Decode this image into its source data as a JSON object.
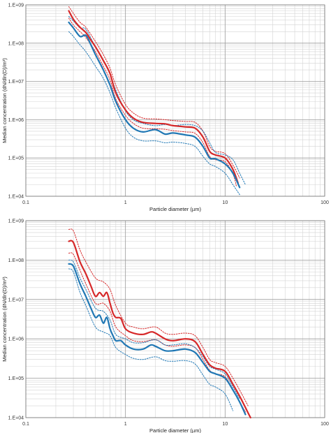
{
  "chart_data": [
    {
      "type": "line",
      "xscale": "log",
      "yscale": "log",
      "xlim": [
        0.1,
        100
      ],
      "ylim": [
        10000,
        1000000000
      ],
      "grid": true,
      "xlabel": "Particle diameter (µm)",
      "ylabel": "Median concentration (dN/dln(D)/m³)",
      "xticks": [
        "0.1",
        "1",
        "10",
        "100"
      ],
      "yticks": [
        "1.E+04",
        "1.E+05",
        "1.E+06",
        "1.E+07",
        "1.E+08",
        "1.E+09"
      ],
      "series": [
        {
          "color": "#d62728",
          "style": "solid",
          "x": [
            0.27,
            0.3,
            0.35,
            0.4,
            0.45,
            0.5,
            0.6,
            0.7,
            0.8,
            1.0,
            1.2,
            1.5,
            2.0,
            2.5,
            3.0,
            4.0,
            5.0,
            6.0,
            7.0,
            8.0,
            10.0,
            12.0,
            13.5
          ],
          "y": [
            700000000,
            420000000,
            260000000,
            190000000,
            120000000,
            80000000,
            35000000,
            16000000,
            5000000,
            1800000,
            1100000,
            850000,
            800000,
            780000,
            700000,
            650000,
            600000,
            350000,
            150000,
            120000,
            100000,
            50000,
            22000
          ]
        },
        {
          "color": "#d62728",
          "style": "dotted",
          "x": [
            0.27,
            0.3,
            0.35,
            0.4,
            0.5,
            0.6,
            0.7,
            0.8,
            1.0,
            1.2,
            1.5,
            2.0,
            2.5,
            3.0,
            4.0,
            5.0,
            6.0,
            7.0,
            8.0,
            10.0,
            12.0,
            14.0
          ],
          "y": [
            900000000,
            600000000,
            350000000,
            260000000,
            110000000,
            50000000,
            22000000,
            8000000,
            2500000,
            1500000,
            1100000,
            1050000,
            1000000,
            950000,
            900000,
            850000,
            500000,
            200000,
            150000,
            130000,
            65000,
            30000
          ]
        },
        {
          "color": "#d62728",
          "style": "dotted",
          "x": [
            0.27,
            0.3,
            0.35,
            0.4,
            0.5,
            0.6,
            0.7,
            0.8,
            1.0,
            1.2,
            1.5,
            2.0,
            2.5,
            3.0,
            4.0,
            5.0,
            6.0,
            7.0,
            8.0,
            10.0,
            12.0,
            13.0
          ],
          "y": [
            450000000,
            300000000,
            200000000,
            140000000,
            60000000,
            25000000,
            11000000,
            3500000,
            1300000,
            800000,
            600000,
            580000,
            560000,
            520000,
            480000,
            440000,
            250000,
            110000,
            90000,
            80000,
            38000,
            18000
          ]
        },
        {
          "color": "#1f77b4",
          "style": "solid",
          "x": [
            0.27,
            0.3,
            0.35,
            0.4,
            0.45,
            0.5,
            0.6,
            0.7,
            0.8,
            1.0,
            1.2,
            1.5,
            2.0,
            2.5,
            3.0,
            4.0,
            5.0,
            6.0,
            7.0,
            8.0,
            10.0,
            12.0,
            14.0
          ],
          "y": [
            350000000,
            250000000,
            150000000,
            160000000,
            90000000,
            50000000,
            20000000,
            8000000,
            3000000,
            1000000,
            600000,
            480000,
            550000,
            420000,
            450000,
            400000,
            350000,
            200000,
            100000,
            95000,
            70000,
            40000,
            17000
          ]
        },
        {
          "color": "#1f77b4",
          "style": "dotted",
          "x": [
            0.27,
            0.3,
            0.35,
            0.4,
            0.5,
            0.6,
            0.7,
            0.8,
            1.0,
            1.2,
            1.5,
            2.0,
            2.5,
            3.0,
            4.0,
            5.0,
            6.0,
            7.0,
            8.0,
            10.0,
            12.0,
            14.0,
            16.0
          ],
          "y": [
            500000000,
            380000000,
            250000000,
            230000000,
            80000000,
            35000000,
            15000000,
            6000000,
            1700000,
            1000000,
            800000,
            700000,
            750000,
            700000,
            750000,
            700000,
            500000,
            250000,
            140000,
            120000,
            90000,
            40000,
            20000
          ]
        },
        {
          "color": "#1f77b4",
          "style": "dotted",
          "x": [
            0.27,
            0.3,
            0.35,
            0.4,
            0.5,
            0.6,
            0.7,
            0.8,
            1.0,
            1.2,
            1.5,
            2.0,
            2.5,
            3.0,
            4.0,
            5.0,
            6.0,
            7.0,
            8.0,
            10.0,
            12.0,
            14.0
          ],
          "y": [
            200000000,
            150000000,
            90000000,
            60000000,
            25000000,
            12000000,
            5000000,
            2000000,
            600000,
            350000,
            280000,
            280000,
            250000,
            260000,
            240000,
            200000,
            110000,
            70000,
            60000,
            40000,
            20000,
            11000
          ]
        }
      ]
    },
    {
      "type": "line",
      "xscale": "log",
      "yscale": "log",
      "xlim": [
        0.1,
        100
      ],
      "ylim": [
        10000,
        1000000000
      ],
      "grid": true,
      "xlabel": "Particle diameter (µm)",
      "ylabel": "Median concentration (dN/dln(D)/m³)",
      "xticks": [
        "0.1",
        "1",
        "10",
        "100"
      ],
      "yticks": [
        "1.E+04",
        "1.E+05",
        "1.E+06",
        "1.E+07",
        "1.E+08",
        "1.E+09"
      ],
      "series": [
        {
          "color": "#d62728",
          "style": "solid",
          "x": [
            0.27,
            0.3,
            0.35,
            0.4,
            0.45,
            0.5,
            0.55,
            0.6,
            0.65,
            0.7,
            0.75,
            0.8,
            0.9,
            1.0,
            1.2,
            1.5,
            1.8,
            2.0,
            2.5,
            3.0,
            4.0,
            5.0,
            6.0,
            7.0,
            8.0,
            10.0,
            12.0,
            14.0,
            16.0,
            18.0
          ],
          "y": [
            300000000,
            280000000,
            90000000,
            45000000,
            22000000,
            12000000,
            15000000,
            12000000,
            15000000,
            8000000,
            4500000,
            3500000,
            3300000,
            1800000,
            1400000,
            1300000,
            1500000,
            1400000,
            1000000,
            900000,
            1000000,
            850000,
            400000,
            220000,
            180000,
            150000,
            70000,
            35000,
            18000,
            10000
          ]
        },
        {
          "color": "#d62728",
          "style": "dotted",
          "x": [
            0.27,
            0.3,
            0.35,
            0.4,
            0.5,
            0.6,
            0.7,
            0.8,
            1.0,
            1.2,
            1.5,
            2.0,
            2.5,
            3.0,
            4.0,
            5.0,
            6.0,
            7.0,
            8.0,
            10.0,
            12.0,
            14.0,
            17.0
          ],
          "y": [
            600000000,
            550000000,
            180000000,
            90000000,
            35000000,
            28000000,
            18000000,
            7000000,
            2500000,
            2000000,
            1800000,
            2000000,
            1400000,
            1300000,
            1400000,
            1200000,
            600000,
            300000,
            250000,
            200000,
            100000,
            50000,
            20000
          ]
        },
        {
          "color": "#d62728",
          "style": "dotted",
          "x": [
            0.27,
            0.3,
            0.35,
            0.4,
            0.5,
            0.6,
            0.7,
            0.8,
            1.0,
            1.2,
            1.5,
            2.0,
            2.5,
            3.0,
            4.0,
            5.0,
            6.0,
            7.0,
            8.0,
            10.0,
            12.0,
            14.0,
            16.0
          ],
          "y": [
            150000000,
            140000000,
            55000000,
            25000000,
            8000000,
            8000000,
            5000000,
            2000000,
            1200000,
            900000,
            850000,
            950000,
            700000,
            650000,
            700000,
            600000,
            300000,
            160000,
            130000,
            110000,
            50000,
            25000,
            14000
          ]
        },
        {
          "color": "#1f77b4",
          "style": "solid",
          "x": [
            0.27,
            0.3,
            0.35,
            0.4,
            0.45,
            0.5,
            0.55,
            0.6,
            0.65,
            0.7,
            0.75,
            0.8,
            0.9,
            1.0,
            1.2,
            1.5,
            1.8,
            2.0,
            2.5,
            3.0,
            4.0,
            5.0,
            6.0,
            7.0,
            8.0,
            10.0,
            12.0,
            14.0,
            16.0
          ],
          "y": [
            80000000,
            70000000,
            25000000,
            12000000,
            6000000,
            3500000,
            4000000,
            2500000,
            3500000,
            1800000,
            1200000,
            900000,
            900000,
            700000,
            550000,
            550000,
            700000,
            650000,
            500000,
            500000,
            550000,
            450000,
            250000,
            150000,
            130000,
            100000,
            50000,
            25000,
            12000
          ]
        },
        {
          "color": "#1f77b4",
          "style": "dotted",
          "x": [
            0.27,
            0.3,
            0.35,
            0.4,
            0.5,
            0.6,
            0.7,
            0.8,
            1.0,
            1.2,
            1.5,
            2.0,
            2.5,
            3.0,
            4.0,
            5.0,
            6.0,
            7.0,
            8.0,
            10.0,
            12.0,
            14.0
          ],
          "y": [
            100000000,
            90000000,
            35000000,
            18000000,
            6000000,
            5000000,
            3000000,
            1300000,
            1000000,
            800000,
            800000,
            950000,
            700000,
            700000,
            750000,
            600000,
            350000,
            200000,
            170000,
            130000,
            60000,
            30000
          ]
        },
        {
          "color": "#1f77b4",
          "style": "dotted",
          "x": [
            0.27,
            0.3,
            0.35,
            0.4,
            0.5,
            0.6,
            0.7,
            0.8,
            1.0,
            1.2,
            1.5,
            2.0,
            2.5,
            3.0,
            4.0,
            5.0,
            6.0,
            7.0,
            8.0,
            10.0,
            12.0
          ],
          "y": [
            60000000,
            50000000,
            15000000,
            7000000,
            2000000,
            1500000,
            1200000,
            600000,
            400000,
            320000,
            300000,
            350000,
            280000,
            270000,
            280000,
            230000,
            120000,
            70000,
            60000,
            40000,
            15000
          ]
        }
      ]
    }
  ]
}
